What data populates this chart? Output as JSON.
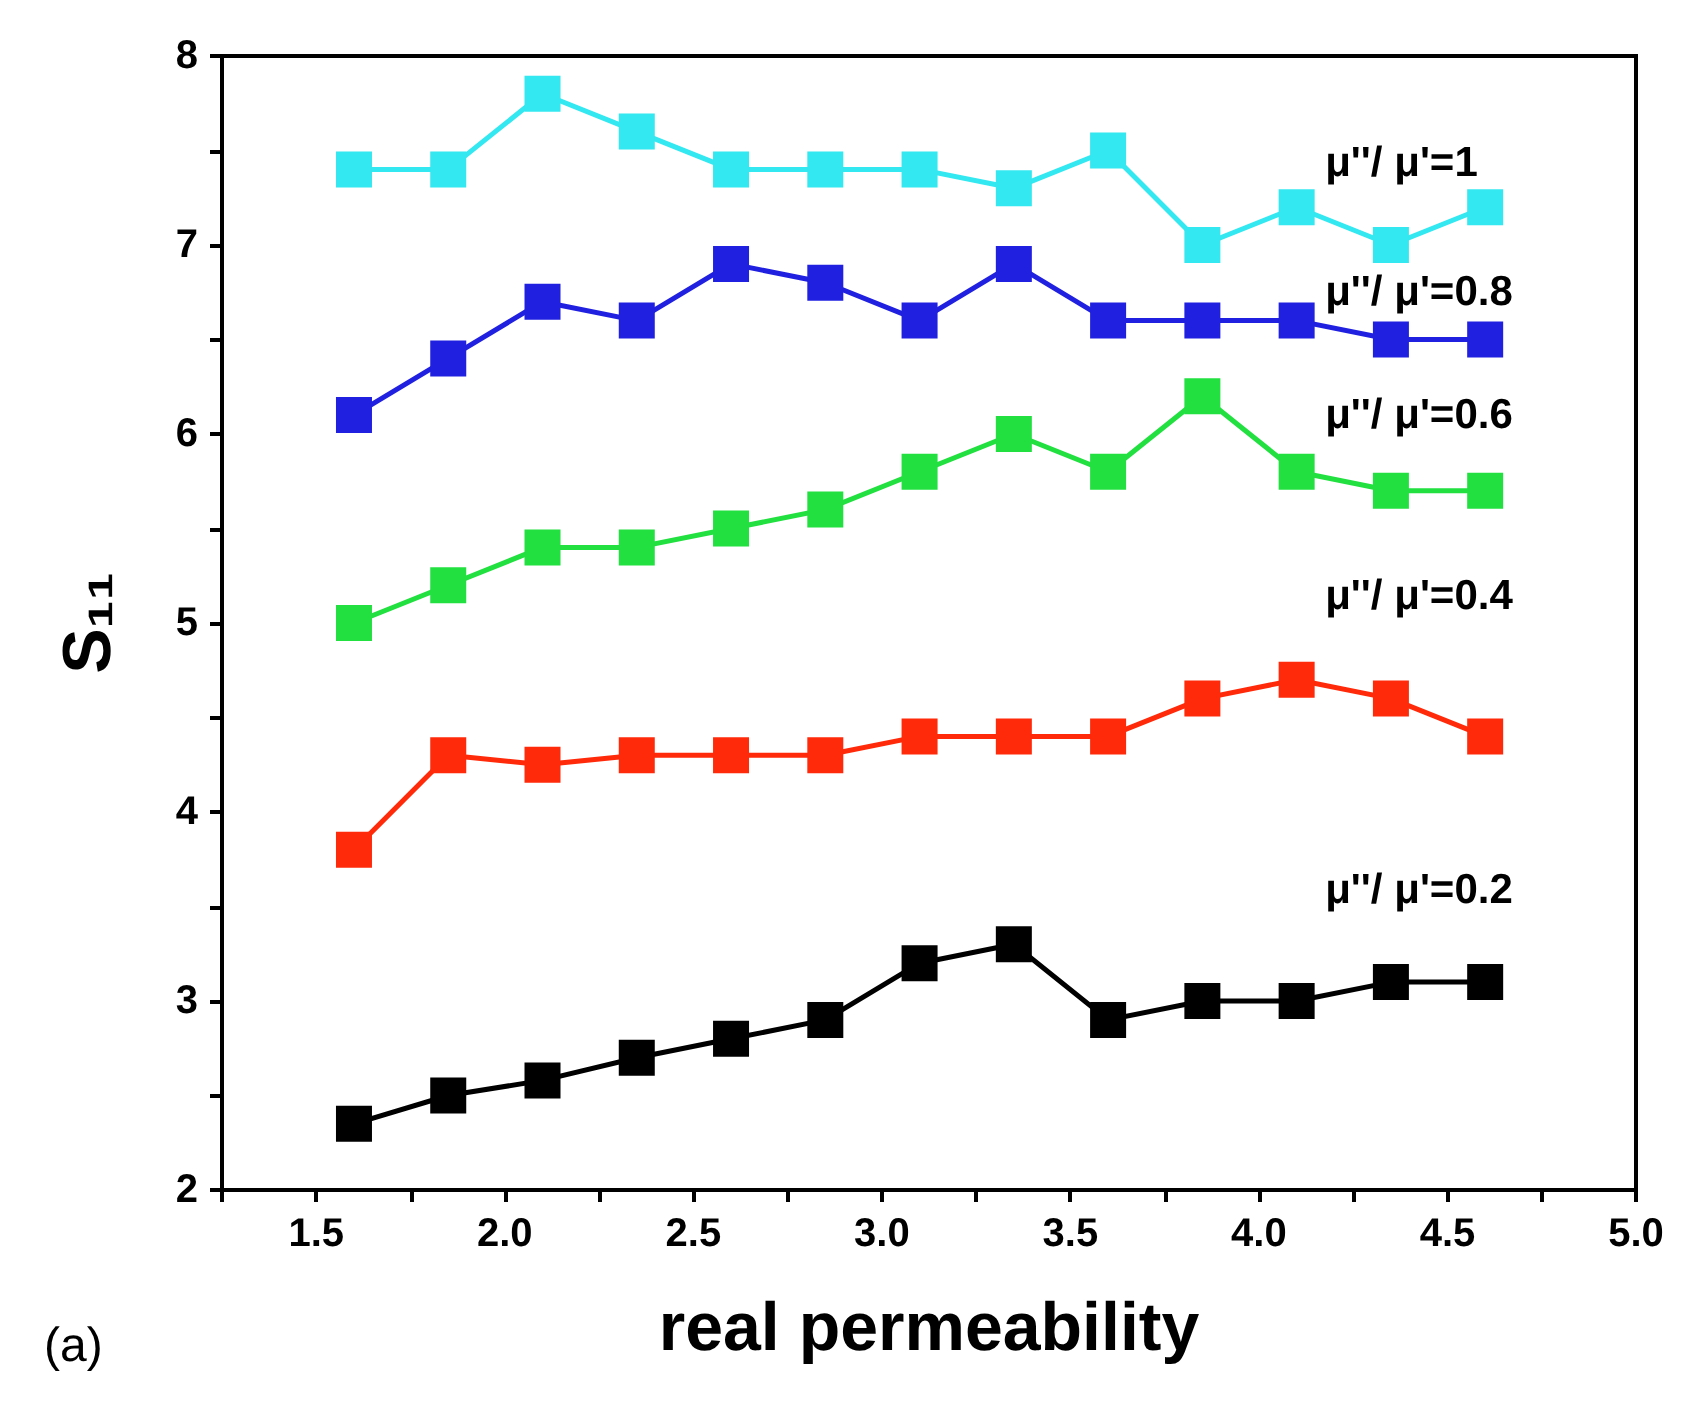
{
  "chart_data": {
    "type": "line",
    "xlabel": "real permeability",
    "ylabel": "S₁₁",
    "annotations": [
      "(a)"
    ],
    "x": [
      1.6,
      1.85,
      2.1,
      2.35,
      2.6,
      2.85,
      3.1,
      3.35,
      3.6,
      3.85,
      4.1,
      4.35,
      4.6
    ],
    "series": [
      {
        "name": "μ''/ μ'=0.2",
        "color": "#000000",
        "values": [
          2.35,
          2.5,
          2.58,
          2.7,
          2.8,
          2.9,
          3.2,
          3.3,
          2.9,
          3.0,
          3.0,
          3.1,
          3.1
        ]
      },
      {
        "name": "μ''/ μ'=0.4",
        "color": "#ff2a0a",
        "values": [
          3.8,
          4.3,
          4.25,
          4.3,
          4.3,
          4.3,
          4.4,
          4.4,
          4.4,
          4.6,
          4.7,
          4.6,
          4.4
        ]
      },
      {
        "name": "μ''/ μ'=0.6",
        "color": "#22e040",
        "values": [
          5.0,
          5.2,
          5.4,
          5.4,
          5.5,
          5.6,
          5.8,
          6.0,
          5.8,
          6.2,
          5.8,
          5.7,
          5.7
        ]
      },
      {
        "name": "μ''/ μ'=0.8",
        "color": "#2020e0",
        "values": [
          6.1,
          6.4,
          6.7,
          6.6,
          6.9,
          6.8,
          6.6,
          6.9,
          6.6,
          6.6,
          6.6,
          6.5,
          6.5
        ]
      },
      {
        "name": "μ''/ μ'=1",
        "color": "#33e8f0",
        "values": [
          7.4,
          7.4,
          7.8,
          7.6,
          7.4,
          7.4,
          7.4,
          7.3,
          7.5,
          7.0,
          7.2,
          7.0,
          7.2
        ]
      }
    ],
    "xlim": [
      1.25,
      5.0
    ],
    "xticks": [
      {
        "value": 1.25,
        "label": null
      },
      1.5,
      {
        "value": 1.75,
        "label": null
      },
      {
        "value": 2,
        "label": "2.0"
      },
      {
        "value": 2.25,
        "label": null
      },
      2.5,
      {
        "value": 2.75,
        "label": null
      },
      {
        "value": 3,
        "label": "3.0"
      },
      {
        "value": 3.25,
        "label": null
      },
      3.5,
      {
        "value": 3.75,
        "label": null
      },
      {
        "value": 4,
        "label": "4.0"
      },
      {
        "value": 4.25,
        "label": null
      },
      4.5,
      {
        "value": 4.75,
        "label": null
      },
      {
        "value": 5,
        "label": "5.0"
      }
    ],
    "ylim": [
      2,
      8
    ],
    "yticks": [
      2,
      {
        "value": 2.5,
        "label": null
      },
      3,
      {
        "value": 3.5,
        "label": null
      },
      4,
      {
        "value": 4.5,
        "label": null
      },
      5,
      {
        "value": 5.5,
        "label": null
      },
      6,
      {
        "value": 6.5,
        "label": null
      },
      7,
      {
        "value": 7.5,
        "label": null
      },
      8
    ],
    "grid": false,
    "legend": false,
    "marker": "square",
    "line_style": "solid"
  }
}
